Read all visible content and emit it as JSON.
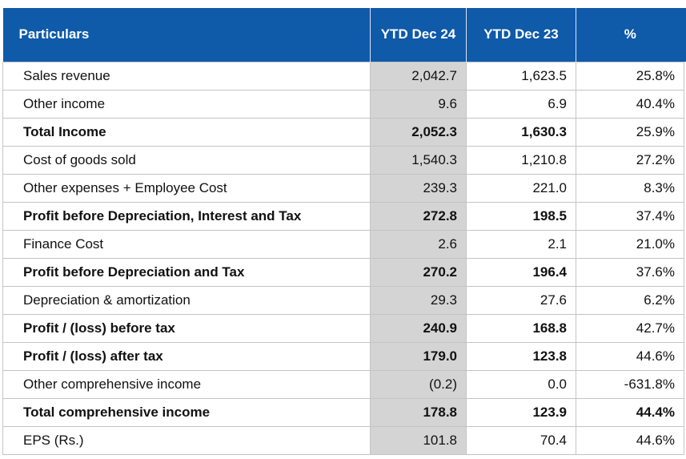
{
  "headers": [
    "Particulars",
    "YTD Dec 24",
    "YTD Dec 23",
    "%"
  ],
  "rows": [
    {
      "label": "Sales revenue",
      "ytd24": "2,042.7",
      "ytd23": "1,623.5",
      "pct": "25.8%",
      "bold": false
    },
    {
      "label": "Other income",
      "ytd24": "9.6",
      "ytd23": "6.9",
      "pct": "40.4%",
      "bold": false
    },
    {
      "label": "Total Income",
      "ytd24": "2,052.3",
      "ytd23": "1,630.3",
      "pct": "25.9%",
      "bold": true
    },
    {
      "label": "Cost of goods sold",
      "ytd24": "1,540.3",
      "ytd23": "1,210.8",
      "pct": "27.2%",
      "bold": false
    },
    {
      "label": "Other expenses + Employee Cost",
      "ytd24": "239.3",
      "ytd23": "221.0",
      "pct": "8.3%",
      "bold": false
    },
    {
      "label": "Profit before Depreciation, Interest and Tax",
      "ytd24": "272.8",
      "ytd23": "198.5",
      "pct": "37.4%",
      "bold": true
    },
    {
      "label": "Finance Cost",
      "ytd24": "2.6",
      "ytd23": "2.1",
      "pct": "21.0%",
      "bold": false
    },
    {
      "label": "Profit before Depreciation and Tax",
      "ytd24": "270.2",
      "ytd23": "196.4",
      "pct": "37.6%",
      "bold": true
    },
    {
      "label": "Depreciation & amortization",
      "ytd24": "29.3",
      "ytd23": "27.6",
      "pct": "6.2%",
      "bold": false
    },
    {
      "label": "Profit / (loss) before tax",
      "ytd24": "240.9",
      "ytd23": "168.8",
      "pct": "42.7%",
      "bold": true
    },
    {
      "label": "Profit / (loss) after tax",
      "ytd24": "179.0",
      "ytd23": "123.8",
      "pct": "44.6%",
      "bold": true
    },
    {
      "label": "Other comprehensive income",
      "ytd24": "(0.2)",
      "ytd23": "0.0",
      "pct": "-631.8%",
      "bold": false
    },
    {
      "label": "Total comprehensive income",
      "ytd24": "178.8",
      "ytd23": "123.9",
      "pct": "44.4%",
      "bold": true
    },
    {
      "label": "EPS (Rs.)",
      "ytd24": "101.8",
      "ytd23": "70.4",
      "pct": "44.6%",
      "bold": false
    }
  ],
  "colors": {
    "header_bg": "#0f5aa9",
    "header_text": "#ffffff",
    "highlight_col_bg": "#d4d4d4",
    "border": "#c4c4c4"
  }
}
